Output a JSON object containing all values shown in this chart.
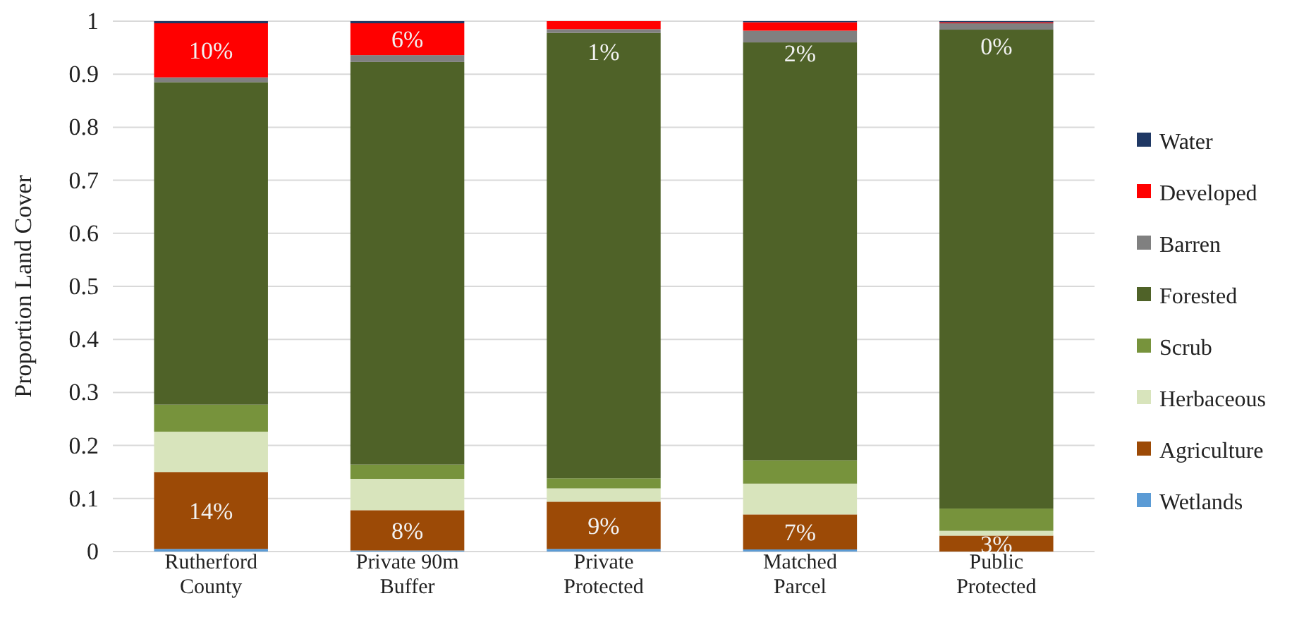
{
  "chart_data": {
    "type": "bar",
    "stacked": true,
    "ylabel": "Proportion Land Cover",
    "categories": [
      "Rutherford County",
      "Private 90m Buffer",
      "Private Protected",
      "Matched Parcel",
      "Public Protected"
    ],
    "series": [
      {
        "name": "Wetlands",
        "color": "#5b9bd5",
        "values": [
          0.005,
          0.002,
          0.005,
          0.004,
          0
        ]
      },
      {
        "name": "Agriculture",
        "color": "#9c4a06",
        "values": [
          0.145,
          0.076,
          0.089,
          0.066,
          0.03
        ],
        "value_labels": [
          "14%",
          "8%",
          "9%",
          "7%",
          "3%"
        ]
      },
      {
        "name": "Herbaceous",
        "color": "#d8e4bc",
        "values": [
          0.076,
          0.059,
          0.025,
          0.058,
          0.009
        ]
      },
      {
        "name": "Scrub",
        "color": "#77933c",
        "values": [
          0.051,
          0.027,
          0.019,
          0.044,
          0.042
        ]
      },
      {
        "name": "Forested",
        "color": "#4f6228",
        "values": [
          0.608,
          0.759,
          0.84,
          0.788,
          0.903
        ]
      },
      {
        "name": "Barren",
        "color": "#808080",
        "values": [
          0.009,
          0.013,
          0.007,
          0.022,
          0.012
        ]
      },
      {
        "name": "Developed",
        "color": "#ff0000",
        "values": [
          0.102,
          0.06,
          0.015,
          0.016,
          0.002
        ],
        "value_labels": [
          "10%",
          "6%",
          "1%",
          "2%",
          "0%"
        ]
      },
      {
        "name": "Water",
        "color": "#1f3864",
        "values": [
          0.004,
          0.004,
          0,
          0.002,
          0.002
        ]
      }
    ],
    "ylim": [
      0,
      1
    ],
    "yticks": [
      0,
      0.1,
      0.2,
      0.3,
      0.4,
      0.5,
      0.6,
      0.7,
      0.8,
      0.9,
      1
    ],
    "grid": "y",
    "legend": "right"
  }
}
